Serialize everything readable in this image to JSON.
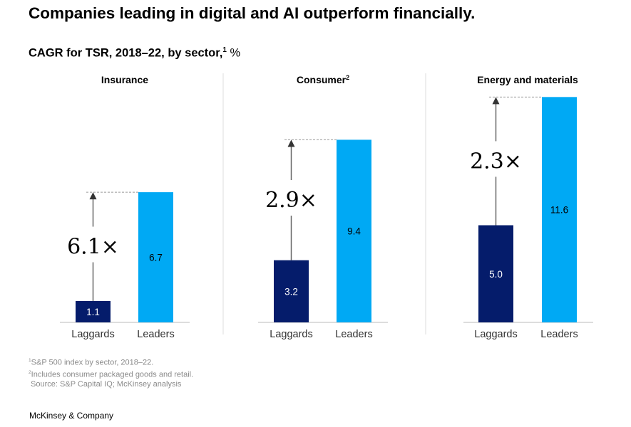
{
  "chart_data": {
    "type": "bar",
    "title": "Companies leading in digital and AI outperform financially.",
    "subtitle": "CAGR for TSR, 2018–22, by sector,",
    "subtitle_sup": "1",
    "unit": "%",
    "categories": [
      "Laggards",
      "Leaders"
    ],
    "colors": {
      "Laggards": "#051c6b",
      "Leaders": "#00a9f4"
    },
    "panels": [
      {
        "sector": "Insurance",
        "sup": "",
        "values": [
          1.1,
          6.7
        ],
        "value_labels": [
          "1.1",
          "6.7"
        ],
        "multiplier": "6.1×"
      },
      {
        "sector": "Consumer",
        "sup": "2",
        "values": [
          3.2,
          9.4
        ],
        "value_labels": [
          "3.2",
          "9.4"
        ],
        "multiplier": "2.9×"
      },
      {
        "sector": "Energy and materials",
        "sup": "",
        "values": [
          5.0,
          11.6
        ],
        "value_labels": [
          "5.0",
          "11.6"
        ],
        "multiplier": "2.3×"
      }
    ],
    "grid": false
  },
  "footnotes": [
    {
      "sup": "1",
      "text": "S&P 500 index by sector, 2018–22."
    },
    {
      "sup": "2",
      "text": "Includes consumer packaged goods and retail."
    },
    {
      "sup": "",
      "text": " Source: S&P Capital IQ; McKinsey analysis"
    }
  ],
  "brand": "McKinsey & Company"
}
